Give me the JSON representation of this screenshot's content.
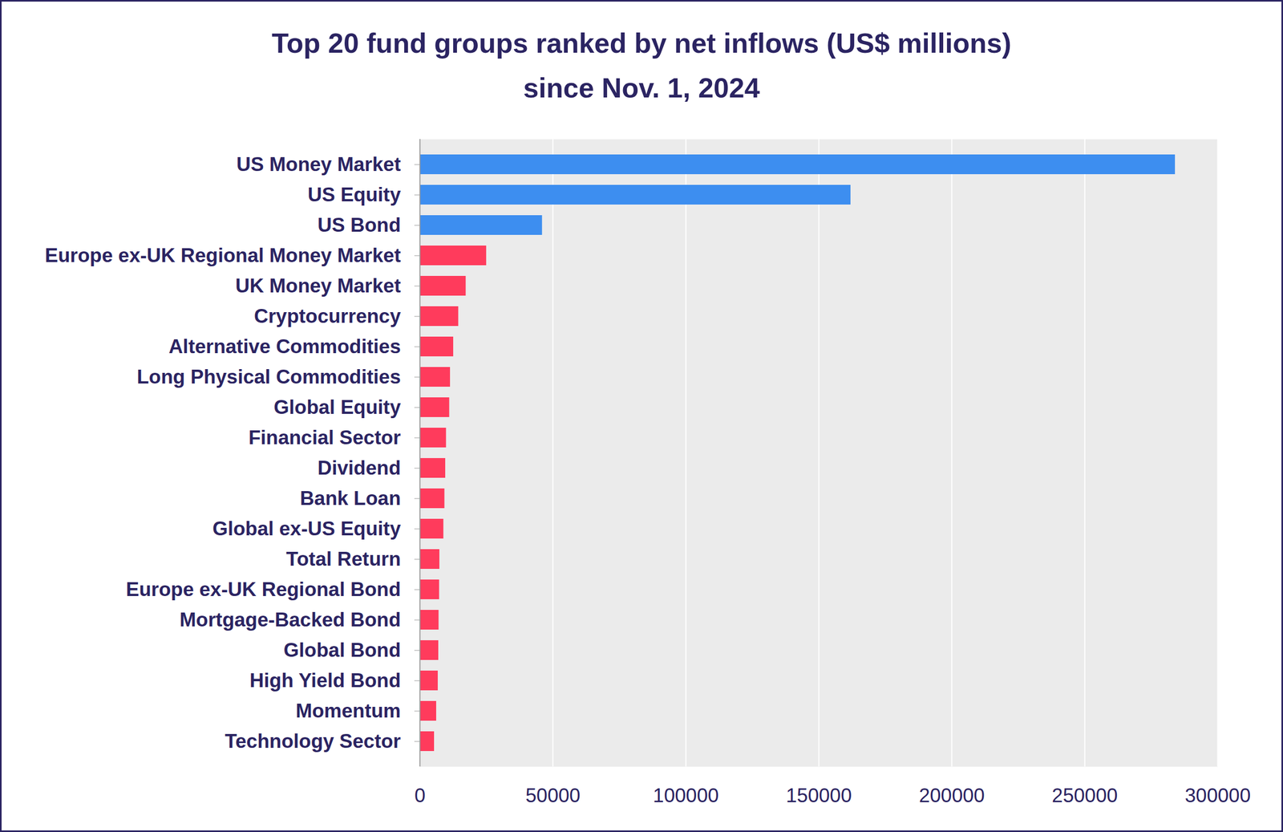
{
  "chart_data": {
    "type": "bar",
    "title": "Top 20 fund groups ranked by net inflows (US$ millions)",
    "subtitle": "since Nov. 1, 2024",
    "orientation": "horizontal",
    "categories": [
      "US Money Market",
      "US Equity",
      "US Bond",
      "Europe ex-UK Regional Money Market",
      "UK Money Market",
      "Cryptocurrency",
      "Alternative Commodities",
      "Long Physical Commodities",
      "Global Equity",
      "Financial Sector",
      "Dividend",
      "Bank Loan",
      "Global ex-US Equity",
      "Total Return",
      "Europe ex-UK Regional Bond",
      "Mortgage-Backed Bond",
      "Global Bond",
      "High Yield Bond",
      "Momentum",
      "Technology Sector"
    ],
    "values": [
      284000,
      162000,
      46000,
      25000,
      17300,
      14500,
      12600,
      11400,
      11100,
      9900,
      9600,
      9300,
      8900,
      7400,
      7300,
      7100,
      7000,
      6800,
      6200,
      5400
    ],
    "colors": [
      "#3d8ef0",
      "#3d8ef0",
      "#3d8ef0",
      "#ff3b5c",
      "#ff3b5c",
      "#ff3b5c",
      "#ff3b5c",
      "#ff3b5c",
      "#ff3b5c",
      "#ff3b5c",
      "#ff3b5c",
      "#ff3b5c",
      "#ff3b5c",
      "#ff3b5c",
      "#ff3b5c",
      "#ff3b5c",
      "#ff3b5c",
      "#ff3b5c",
      "#ff3b5c",
      "#ff3b5c"
    ],
    "xlim": [
      0,
      300000
    ],
    "xticks": [
      0,
      50000,
      100000,
      150000,
      200000,
      250000,
      300000
    ],
    "grid": true
  }
}
